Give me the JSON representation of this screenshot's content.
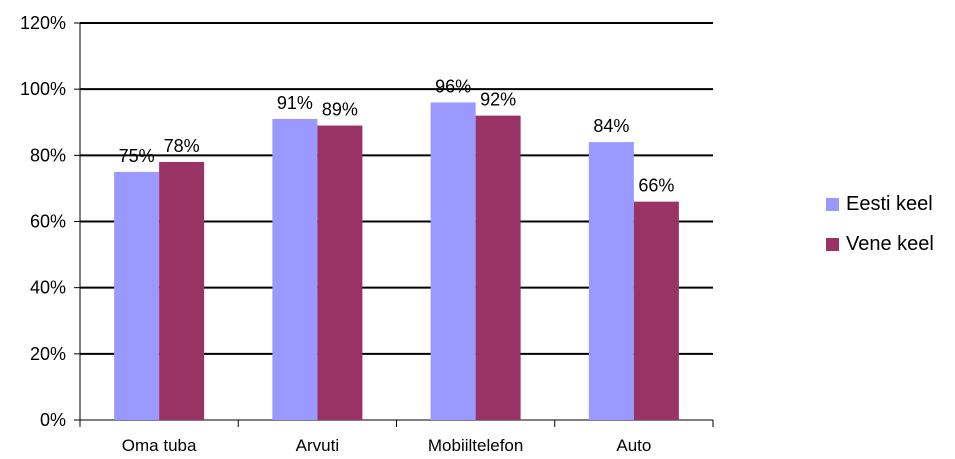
{
  "chart_data": {
    "type": "bar",
    "categories": [
      "Oma tuba",
      "Arvuti",
      "Mobiiltelefon",
      "Auto"
    ],
    "series": [
      {
        "name": "Eesti keel",
        "values": [
          75,
          91,
          96,
          84
        ],
        "color": "#9999ff"
      },
      {
        "name": "Vene keel",
        "values": [
          78,
          89,
          92,
          66
        ],
        "color": "#993366"
      }
    ],
    "value_suffix": "%",
    "ylim": [
      0,
      120
    ],
    "yticks": [
      0,
      20,
      40,
      60,
      80,
      100,
      120
    ],
    "ytick_labels": [
      "0%",
      "20%",
      "40%",
      "60%",
      "80%",
      "100%",
      "120%"
    ],
    "grid": true,
    "legend_position": "right",
    "title": "",
    "xlabel": "",
    "ylabel": ""
  }
}
